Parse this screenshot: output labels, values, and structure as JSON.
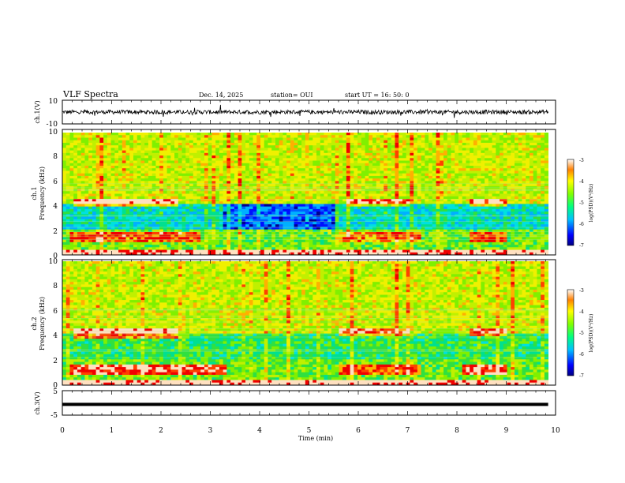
{
  "header": {
    "title": "VLF Spectra",
    "date": "Dec. 14, 2025",
    "station": "station= OUI",
    "start": "start  UT  =   16: 50: 0"
  },
  "chart_data": [
    {
      "type": "line",
      "name": "ch1-waveform",
      "ylabel": "ch.1(V)",
      "ylim": [
        -10,
        10
      ],
      "yticks": [
        "10",
        "-10"
      ],
      "x_range_min": [
        0,
        9.85
      ],
      "baseline_V": 0,
      "amplitude_V": 2.5
    },
    {
      "type": "heatmap",
      "name": "ch1-spectrogram",
      "ylabel": [
        "ch.1",
        "Frequency  (kHz)"
      ],
      "ylim_kHz": [
        0,
        10
      ],
      "yticks": [
        "0",
        "2",
        "4",
        "6",
        "8",
        "10"
      ],
      "x_range_min": [
        0,
        9.85
      ],
      "colorbar": {
        "label": "log(PSD)(V²/Hz)",
        "range": [
          -7,
          -3
        ],
        "ticks": [
          "-3",
          "-4",
          "-5",
          "-6",
          "-7"
        ]
      }
    },
    {
      "type": "heatmap",
      "name": "ch2-spectrogram",
      "ylabel": [
        "ch.2",
        "Frequency  (kHz)"
      ],
      "ylim_kHz": [
        0,
        10
      ],
      "yticks": [
        "0",
        "2",
        "4",
        "6",
        "8",
        "10"
      ],
      "x_range_min": [
        0,
        9.85
      ],
      "colorbar": {
        "label": "log(PSD)(V²/Hz)",
        "range": [
          -7,
          -3
        ],
        "ticks": [
          "-3",
          "-4",
          "-5",
          "-6",
          "-7"
        ]
      }
    },
    {
      "type": "line",
      "name": "ch3-signal",
      "ylabel": "ch.3(V)",
      "ylim": [
        -5,
        5
      ],
      "yticks": [
        "5",
        "-5"
      ],
      "x_range_min": [
        0,
        9.85
      ],
      "level_V": -0.6
    }
  ],
  "xaxis": {
    "label": "Time  (min)",
    "range": [
      0,
      10
    ],
    "ticks": [
      "0",
      "1",
      "2",
      "3",
      "4",
      "5",
      "6",
      "7",
      "8",
      "9",
      "10"
    ]
  }
}
